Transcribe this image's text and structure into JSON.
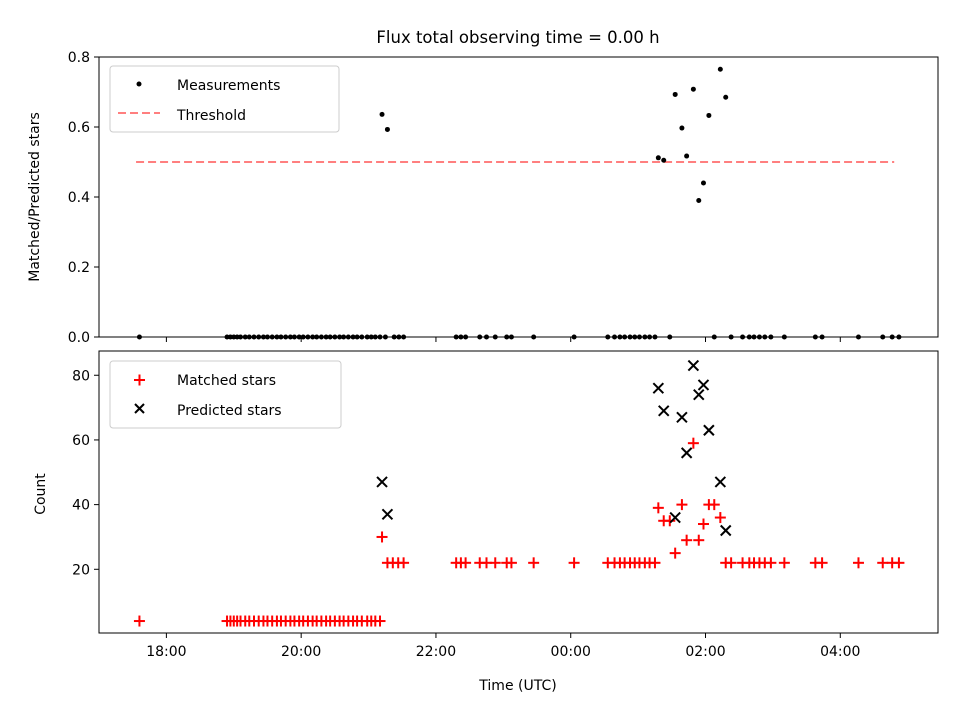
{
  "title": "Flux total observing time = 0.00 h",
  "xlabel": "Time (UTC)",
  "colors": {
    "threshold": "#ff7f7f",
    "matched": "#ff0000",
    "predicted": "#000000",
    "measurement": "#000000"
  },
  "chart_data": [
    {
      "type": "scatter",
      "panel": "top",
      "ylabel": "Matched/Predicted stars",
      "ylim": [
        0,
        0.8
      ],
      "yticks": [
        "0.0",
        "0.2",
        "0.4",
        "0.6",
        "0.8"
      ],
      "x_unit": "hours after 00:00 UTC",
      "xlim": [
        -7.0,
        5.45
      ],
      "threshold": 0.5,
      "threshold_x": [
        -6.45,
        4.8
      ],
      "legend_position": "upper-left",
      "legend": [
        "Measurements",
        "Threshold"
      ],
      "measurements": [
        [
          -6.4,
          0.0
        ],
        [
          -5.1,
          0.0
        ],
        [
          -5.05,
          0.0
        ],
        [
          -5.0,
          0.0
        ],
        [
          -4.95,
          0.0
        ],
        [
          -4.9,
          0.0
        ],
        [
          -4.83,
          0.0
        ],
        [
          -4.77,
          0.0
        ],
        [
          -4.7,
          0.0
        ],
        [
          -4.63,
          0.0
        ],
        [
          -4.56,
          0.0
        ],
        [
          -4.5,
          0.0
        ],
        [
          -4.43,
          0.0
        ],
        [
          -4.36,
          0.0
        ],
        [
          -4.3,
          0.0
        ],
        [
          -4.23,
          0.0
        ],
        [
          -4.16,
          0.0
        ],
        [
          -4.1,
          0.0
        ],
        [
          -4.03,
          0.0
        ],
        [
          -3.97,
          0.0
        ],
        [
          -3.9,
          0.0
        ],
        [
          -3.83,
          0.0
        ],
        [
          -3.77,
          0.0
        ],
        [
          -3.7,
          0.0
        ],
        [
          -3.63,
          0.0
        ],
        [
          -3.57,
          0.0
        ],
        [
          -3.5,
          0.0
        ],
        [
          -3.43,
          0.0
        ],
        [
          -3.37,
          0.0
        ],
        [
          -3.3,
          0.0
        ],
        [
          -3.23,
          0.0
        ],
        [
          -3.17,
          0.0
        ],
        [
          -3.1,
          0.0
        ],
        [
          -3.02,
          0.0
        ],
        [
          -2.96,
          0.0
        ],
        [
          -2.9,
          0.0
        ],
        [
          -2.83,
          0.0
        ],
        [
          -2.75,
          0.0
        ],
        [
          -2.8,
          0.636
        ],
        [
          -2.72,
          0.593
        ],
        [
          -2.62,
          0.0
        ],
        [
          -2.55,
          0.0
        ],
        [
          -2.48,
          0.0
        ],
        [
          -1.7,
          0.0
        ],
        [
          -1.63,
          0.0
        ],
        [
          -1.56,
          0.0
        ],
        [
          -1.35,
          0.0
        ],
        [
          -1.25,
          0.0
        ],
        [
          -1.12,
          0.0
        ],
        [
          -0.95,
          0.0
        ],
        [
          -0.88,
          0.0
        ],
        [
          -0.55,
          0.0
        ],
        [
          0.05,
          0.0
        ],
        [
          0.55,
          0.0
        ],
        [
          0.65,
          0.0
        ],
        [
          0.73,
          0.0
        ],
        [
          0.8,
          0.0
        ],
        [
          0.88,
          0.0
        ],
        [
          0.95,
          0.0
        ],
        [
          1.02,
          0.0
        ],
        [
          1.1,
          0.0
        ],
        [
          1.17,
          0.0
        ],
        [
          1.25,
          0.0
        ],
        [
          1.3,
          0.512
        ],
        [
          1.38,
          0.505
        ],
        [
          1.47,
          0.0
        ],
        [
          1.55,
          0.693
        ],
        [
          1.65,
          0.597
        ],
        [
          1.72,
          0.517
        ],
        [
          1.82,
          0.708
        ],
        [
          1.9,
          0.39
        ],
        [
          1.97,
          0.44
        ],
        [
          2.05,
          0.633
        ],
        [
          2.13,
          0.0
        ],
        [
          2.22,
          0.765
        ],
        [
          2.3,
          0.685
        ],
        [
          2.38,
          0.0
        ],
        [
          2.55,
          0.0
        ],
        [
          2.65,
          0.0
        ],
        [
          2.72,
          0.0
        ],
        [
          2.8,
          0.0
        ],
        [
          2.88,
          0.0
        ],
        [
          2.97,
          0.0
        ],
        [
          3.17,
          0.0
        ],
        [
          3.63,
          0.0
        ],
        [
          3.73,
          0.0
        ],
        [
          4.27,
          0.0
        ],
        [
          4.63,
          0.0
        ],
        [
          4.77,
          0.0
        ],
        [
          4.87,
          0.0
        ]
      ]
    },
    {
      "type": "scatter",
      "panel": "bottom",
      "ylabel": "Count",
      "ylim": [
        0.3,
        87.5
      ],
      "yticks": [
        "20",
        "40",
        "60",
        "80"
      ],
      "x_unit": "hours after 00:00 UTC",
      "xlim": [
        -7.0,
        5.45
      ],
      "xticks": [
        "18:00",
        "20:00",
        "22:00",
        "00:00",
        "02:00",
        "04:00"
      ],
      "legend_position": "upper-left",
      "legend": [
        "Matched stars",
        "Predicted stars"
      ],
      "matched": [
        [
          -6.4,
          4
        ],
        [
          -5.1,
          4
        ],
        [
          -5.05,
          4
        ],
        [
          -5.0,
          4
        ],
        [
          -4.95,
          4
        ],
        [
          -4.9,
          4
        ],
        [
          -4.83,
          4
        ],
        [
          -4.77,
          4
        ],
        [
          -4.7,
          4
        ],
        [
          -4.63,
          4
        ],
        [
          -4.56,
          4
        ],
        [
          -4.5,
          4
        ],
        [
          -4.43,
          4
        ],
        [
          -4.36,
          4
        ],
        [
          -4.3,
          4
        ],
        [
          -4.23,
          4
        ],
        [
          -4.16,
          4
        ],
        [
          -4.1,
          4
        ],
        [
          -4.03,
          4
        ],
        [
          -3.97,
          4
        ],
        [
          -3.9,
          4
        ],
        [
          -3.83,
          4
        ],
        [
          -3.77,
          4
        ],
        [
          -3.7,
          4
        ],
        [
          -3.63,
          4
        ],
        [
          -3.57,
          4
        ],
        [
          -3.5,
          4
        ],
        [
          -3.43,
          4
        ],
        [
          -3.37,
          4
        ],
        [
          -3.3,
          4
        ],
        [
          -3.23,
          4
        ],
        [
          -3.17,
          4
        ],
        [
          -3.1,
          4
        ],
        [
          -3.02,
          4
        ],
        [
          -2.96,
          4
        ],
        [
          -2.9,
          4
        ],
        [
          -2.83,
          4
        ],
        [
          -2.8,
          30
        ],
        [
          -2.72,
          22
        ],
        [
          -2.64,
          22
        ],
        [
          -2.56,
          22
        ],
        [
          -2.48,
          22
        ],
        [
          -1.7,
          22
        ],
        [
          -1.63,
          22
        ],
        [
          -1.56,
          22
        ],
        [
          -1.35,
          22
        ],
        [
          -1.25,
          22
        ],
        [
          -1.12,
          22
        ],
        [
          -0.95,
          22
        ],
        [
          -0.88,
          22
        ],
        [
          -0.55,
          22
        ],
        [
          0.05,
          22
        ],
        [
          0.55,
          22
        ],
        [
          0.65,
          22
        ],
        [
          0.73,
          22
        ],
        [
          0.8,
          22
        ],
        [
          0.88,
          22
        ],
        [
          0.95,
          22
        ],
        [
          1.02,
          22
        ],
        [
          1.1,
          22
        ],
        [
          1.17,
          22
        ],
        [
          1.25,
          22
        ],
        [
          1.3,
          39
        ],
        [
          1.38,
          35
        ],
        [
          1.47,
          35
        ],
        [
          1.55,
          25
        ],
        [
          1.65,
          40
        ],
        [
          1.72,
          29
        ],
        [
          1.82,
          59
        ],
        [
          1.9,
          29
        ],
        [
          1.97,
          34
        ],
        [
          2.05,
          40
        ],
        [
          2.13,
          40
        ],
        [
          2.22,
          36
        ],
        [
          2.3,
          22
        ],
        [
          2.38,
          22
        ],
        [
          2.55,
          22
        ],
        [
          2.65,
          22
        ],
        [
          2.72,
          22
        ],
        [
          2.8,
          22
        ],
        [
          2.88,
          22
        ],
        [
          2.97,
          22
        ],
        [
          3.17,
          22
        ],
        [
          3.63,
          22
        ],
        [
          3.73,
          22
        ],
        [
          4.27,
          22
        ],
        [
          4.63,
          22
        ],
        [
          4.77,
          22
        ],
        [
          4.87,
          22
        ]
      ],
      "predicted": [
        [
          -2.8,
          47
        ],
        [
          -2.72,
          37
        ],
        [
          1.3,
          76
        ],
        [
          1.38,
          69
        ],
        [
          1.55,
          36
        ],
        [
          1.65,
          67
        ],
        [
          1.72,
          56
        ],
        [
          1.82,
          83
        ],
        [
          1.9,
          74
        ],
        [
          1.97,
          77
        ],
        [
          2.05,
          63
        ],
        [
          2.22,
          47
        ],
        [
          2.3,
          32
        ]
      ]
    }
  ]
}
